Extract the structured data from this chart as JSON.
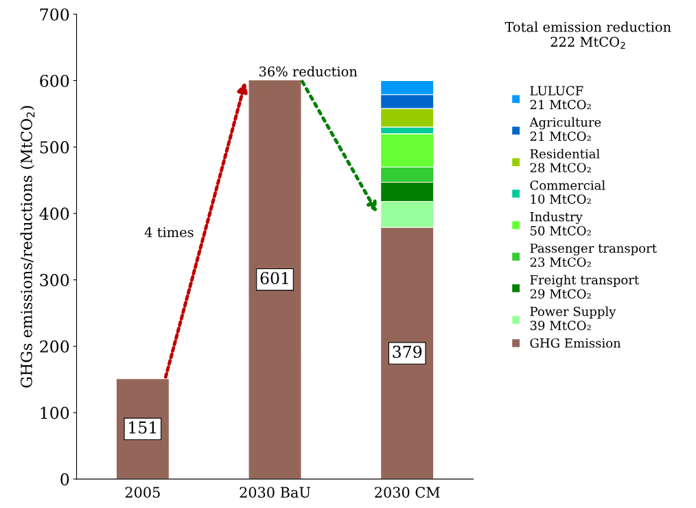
{
  "chart_data": {
    "type": "bar",
    "stacked": true,
    "categories": [
      "2005",
      "2030 BaU",
      "2030 CM"
    ],
    "ylabel": "GHGs emissions/reductions (MtCO$_{2}$)",
    "ylim": [
      0,
      700
    ],
    "yticks": [
      0,
      100,
      200,
      300,
      400,
      500,
      600,
      700
    ],
    "grid": false,
    "legend": "right",
    "annotations": [
      "Total emission reduction\n222 MtCO$_{2}$",
      "36% reduction",
      "4 times"
    ],
    "series": [
      {
        "name": "GHG Emission",
        "color": "#94665a",
        "values": [
          151,
          601,
          379
        ],
        "value_labels": [
          "151",
          "601",
          "379"
        ]
      },
      {
        "name": "Power Supply\n39 MtCO₂",
        "color": "#99ff99",
        "values": [
          null,
          null,
          39
        ]
      },
      {
        "name": "Freight transport\n29 MtCO₂",
        "color": "#008000",
        "values": [
          null,
          null,
          29
        ]
      },
      {
        "name": "Passenger transport\n23 MtCO₂",
        "color": "#33cc33",
        "values": [
          null,
          null,
          23
        ]
      },
      {
        "name": "Industry\n50 MtCO₂",
        "color": "#66ff33",
        "values": [
          null,
          null,
          50
        ]
      },
      {
        "name": "Commercial\n10 MtCO₂",
        "color": "#00cc99",
        "values": [
          null,
          null,
          10
        ]
      },
      {
        "name": "Residential\n28 MtCO₂",
        "color": "#99cc00",
        "values": [
          null,
          null,
          28
        ]
      },
      {
        "name": "Agriculture\n21 MtCO₂",
        "color": "#0066cc",
        "values": [
          null,
          null,
          21
        ]
      },
      {
        "name": "LULUCF\n21 MtCO₂",
        "color": "#0099ff",
        "values": [
          null,
          null,
          21
        ]
      }
    ]
  }
}
